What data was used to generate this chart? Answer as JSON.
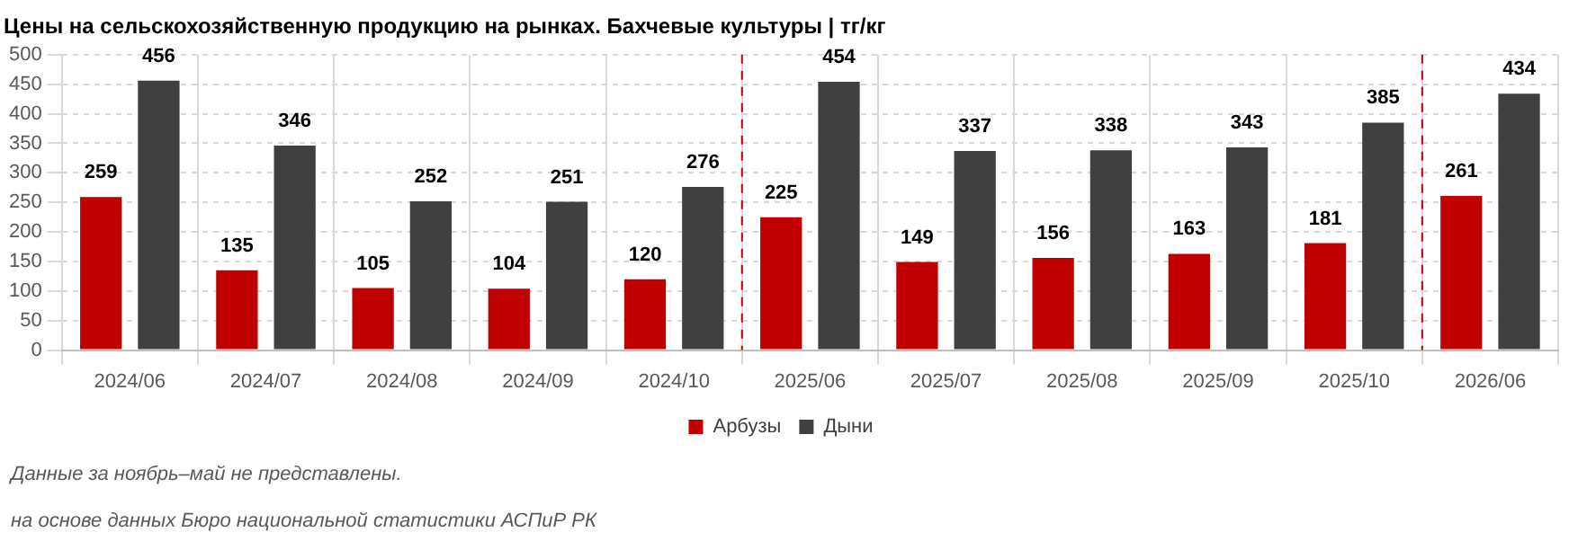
{
  "chart_data": {
    "type": "bar",
    "title": "Цены на сельскохозяйственную продукцию на рынках. Бахчевые культуры | тг/кг",
    "categories": [
      "2024/06",
      "2024/07",
      "2024/08",
      "2024/09",
      "2024/10",
      "2025/06",
      "2025/07",
      "2025/08",
      "2025/09",
      "2025/10",
      "2026/06"
    ],
    "series": [
      {
        "name": "Арбузы",
        "color": "#c00000",
        "values": [
          259,
          135,
          105,
          104,
          120,
          225,
          149,
          156,
          163,
          181,
          261
        ]
      },
      {
        "name": "Дыни",
        "color": "#404040",
        "values": [
          456,
          346,
          252,
          251,
          276,
          454,
          337,
          338,
          343,
          385,
          434
        ]
      }
    ],
    "ylim": [
      0,
      500
    ],
    "yticks": [
      0,
      50,
      100,
      150,
      200,
      250,
      300,
      350,
      400,
      450,
      500
    ],
    "grid": true,
    "legend": "bottom",
    "data_labels": true,
    "annotations": [
      "Данные за ноябрь–май не представлены.",
      "на основе данных Бюро национальной статистики АСПиР РК"
    ]
  }
}
